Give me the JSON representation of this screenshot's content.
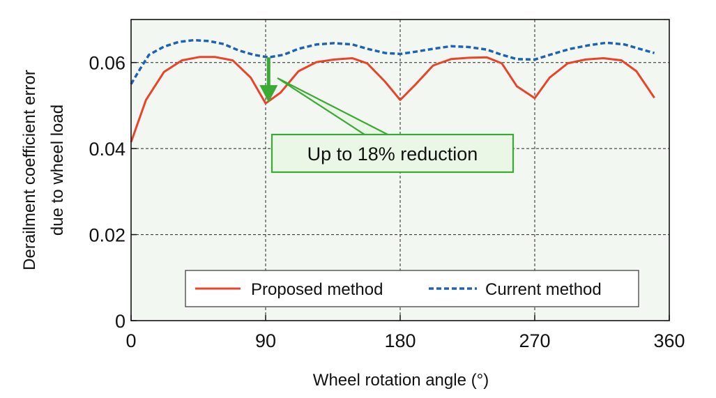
{
  "chart_data": {
    "type": "line",
    "xlabel": "Wheel rotation angle (°)",
    "ylabel_lines": [
      "Derailment coefficient error",
      "due to wheel load"
    ],
    "xlim": [
      0,
      360
    ],
    "ylim": [
      0,
      0.07
    ],
    "x_ticks": [
      0,
      90,
      180,
      270,
      360
    ],
    "x_tick_labels": [
      "0",
      "90",
      "180",
      "270",
      "360"
    ],
    "y_ticks": [
      0,
      0.02,
      0.04,
      0.06
    ],
    "y_tick_labels": [
      "0",
      "0.02",
      "0.04",
      "0.06"
    ],
    "grid": "dashed, at labeled ticks",
    "plot_background": "#f2f8f1",
    "legend_position": "bottom-right",
    "series": [
      {
        "name": "Proposed method",
        "color": "#e8442a",
        "style": "solid",
        "x": [
          0,
          10,
          22,
          34,
          46,
          56,
          68,
          80,
          90,
          100,
          112,
          124,
          136,
          148,
          158,
          170,
          180,
          190,
          202,
          214,
          226,
          238,
          248,
          258,
          270,
          280,
          292,
          304,
          316,
          328,
          338,
          350
        ],
        "y": [
          0.0415,
          0.0513,
          0.0578,
          0.0605,
          0.0613,
          0.0613,
          0.0605,
          0.0565,
          0.0505,
          0.053,
          0.058,
          0.0601,
          0.0607,
          0.061,
          0.0598,
          0.0555,
          0.0513,
          0.0548,
          0.0593,
          0.0608,
          0.0611,
          0.0612,
          0.0598,
          0.0545,
          0.0517,
          0.0565,
          0.0598,
          0.0607,
          0.061,
          0.0605,
          0.058,
          0.0518
        ]
      },
      {
        "name": "Current method",
        "color": "#1e62b4",
        "style": "dashed",
        "x": [
          0,
          6,
          12,
          22,
          32,
          42,
          52,
          62,
          72,
          82,
          92,
          102,
          112,
          124,
          136,
          148,
          158,
          170,
          180,
          190,
          202,
          214,
          226,
          238,
          248,
          258,
          270,
          282,
          294,
          306,
          318,
          330,
          340,
          350
        ],
        "y": [
          0.055,
          0.0585,
          0.0618,
          0.0637,
          0.0648,
          0.0652,
          0.065,
          0.0643,
          0.0628,
          0.0618,
          0.0612,
          0.0618,
          0.0632,
          0.0642,
          0.0645,
          0.0642,
          0.0632,
          0.0622,
          0.062,
          0.0625,
          0.0632,
          0.0638,
          0.0636,
          0.063,
          0.0618,
          0.0608,
          0.0607,
          0.062,
          0.0632,
          0.064,
          0.0646,
          0.0642,
          0.0632,
          0.0622
        ]
      }
    ],
    "annotation": {
      "text": "Up to 18% reduction",
      "arrow_x": 92,
      "arrow_from_y": 0.0612,
      "arrow_to_y": 0.0507,
      "box_fill": "#ebf7e6",
      "box_stroke": "#3aaa35",
      "arrow_color": "#3aaa35"
    }
  }
}
